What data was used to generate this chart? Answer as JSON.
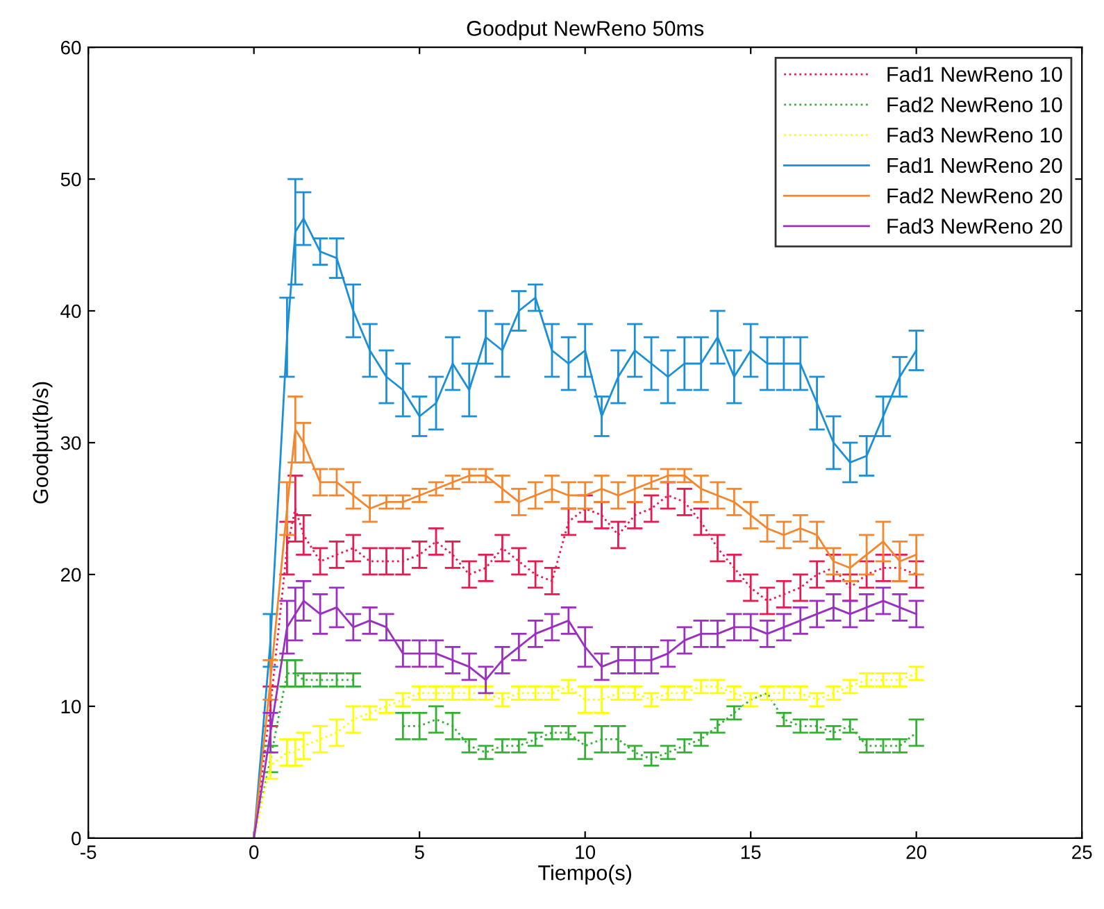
{
  "chart_data": {
    "type": "line",
    "title": "Goodput NewReno 50ms",
    "xlabel": "Tiempo(s)",
    "ylabel": "Goodput(b/s)",
    "x": [
      0,
      0.5,
      1,
      1.25,
      1.5,
      2,
      2.5,
      3,
      3.5,
      4,
      4.5,
      5,
      5.5,
      6,
      6.5,
      7,
      7.5,
      8,
      8.5,
      9,
      9.5,
      10,
      10.5,
      11,
      11.5,
      12,
      12.5,
      13,
      13.5,
      14,
      14.5,
      15,
      15.5,
      16,
      16.5,
      17,
      17.5,
      18,
      18.5,
      19,
      19.5,
      20
    ],
    "series": [
      {
        "name": "Fad1 NewReno 10",
        "color": "#e8194f",
        "line_style": "dotted",
        "values": [
          0,
          10,
          22,
          25,
          23,
          21,
          21.5,
          22,
          21,
          21,
          21,
          21.5,
          22.5,
          21.5,
          20,
          20.5,
          22,
          21,
          20,
          19.5,
          24,
          25,
          24.5,
          23,
          24.5,
          25,
          26,
          25.5,
          24,
          22,
          20.5,
          19,
          18,
          18.5,
          19,
          20,
          20.5,
          19,
          20,
          20.5,
          20.5,
          20
        ],
        "errors": [
          null,
          1.5,
          2,
          2.5,
          1.5,
          1,
          1,
          1,
          1,
          1,
          1,
          1,
          1,
          1,
          1,
          1,
          1,
          1,
          1,
          1,
          1,
          1,
          1,
          1,
          1,
          1,
          1,
          1,
          1,
          1,
          1,
          1,
          1,
          1,
          1,
          1,
          1,
          1,
          1,
          1,
          1,
          1
        ]
      },
      {
        "name": "Fad2 NewReno 10",
        "color": "#33b033",
        "line_style": "dotted",
        "values": [
          0,
          6,
          12.5,
          12.5,
          12,
          12,
          12,
          12,
          null,
          null,
          8.5,
          8.5,
          9,
          8.5,
          7,
          6.5,
          7,
          7,
          7.5,
          8,
          8,
          7,
          7.5,
          7.5,
          6.5,
          6,
          6.5,
          7,
          7.5,
          8.5,
          9.5,
          10.5,
          11,
          9,
          8.5,
          8.5,
          8,
          8.5,
          7,
          7,
          7,
          8
        ],
        "errors": [
          null,
          1,
          1,
          1,
          0.5,
          0.5,
          0.5,
          0.5,
          null,
          null,
          1,
          1,
          1,
          1,
          0.5,
          0.5,
          0.5,
          0.5,
          0.5,
          0.5,
          0.5,
          1,
          1,
          1,
          0.5,
          0.5,
          0.5,
          0.5,
          0.5,
          0.5,
          0.5,
          null,
          null,
          0.5,
          0.5,
          0.5,
          0.5,
          0.5,
          0.5,
          0.5,
          0.5,
          1
        ]
      },
      {
        "name": "Fad3 NewReno 10",
        "color": "#ffff00",
        "line_style": "dotted",
        "values": [
          0,
          5.5,
          6.5,
          6.5,
          7,
          7.5,
          8,
          9,
          9.5,
          10,
          10.5,
          11,
          11,
          11,
          11,
          11,
          10.5,
          11,
          11,
          11,
          11.5,
          10.5,
          10.5,
          11,
          11,
          10.5,
          11,
          11,
          11.5,
          11.5,
          11,
          10.5,
          11,
          11,
          11,
          10.5,
          11,
          11.5,
          12,
          12,
          12,
          12.5
        ],
        "errors": [
          null,
          1,
          1,
          1,
          1,
          1,
          1,
          1,
          0.5,
          0.5,
          0.5,
          0.5,
          0.5,
          0.5,
          0.5,
          0.5,
          0.5,
          0.5,
          0.5,
          0.5,
          0.5,
          1,
          1,
          0.5,
          0.5,
          0.5,
          0.5,
          0.5,
          0.5,
          0.5,
          0.5,
          0.5,
          0.5,
          0.5,
          0.5,
          0.5,
          0.5,
          0.5,
          0.5,
          0.5,
          0.5,
          0.5
        ]
      },
      {
        "name": "Fad1 NewReno 20",
        "color": "#1a8fd6",
        "line_style": "solid",
        "values": [
          0,
          15,
          38,
          46,
          47,
          44.5,
          44,
          40,
          37,
          35,
          34,
          32,
          33,
          36,
          34,
          38,
          37,
          40,
          41,
          37,
          36,
          37,
          32,
          35,
          37,
          36,
          35,
          36,
          36,
          38,
          35,
          37,
          36,
          36,
          36,
          33,
          30,
          28.5,
          29,
          32,
          35,
          37
        ],
        "errors": [
          null,
          2,
          3,
          4,
          2,
          1,
          1.5,
          2,
          2,
          2,
          2,
          1.5,
          2,
          2,
          2,
          2,
          2,
          1.5,
          1,
          2,
          2,
          2,
          1.5,
          2,
          2,
          2,
          2,
          2,
          2,
          2,
          2,
          2,
          2,
          2,
          2,
          2,
          2,
          1.5,
          1.5,
          1.5,
          1.5,
          1.5
        ]
      },
      {
        "name": "Fad2 NewReno 20",
        "color": "#f5862e",
        "line_style": "solid",
        "values": [
          0,
          12,
          25,
          31,
          30,
          27,
          27,
          26,
          25,
          25.5,
          25.5,
          26,
          26.5,
          27,
          27.5,
          27.5,
          26.5,
          25.5,
          26,
          26.5,
          26,
          26,
          26.5,
          26,
          26.5,
          27,
          27.5,
          27.5,
          26.5,
          26,
          25.5,
          24.5,
          23.5,
          23,
          23.5,
          23,
          21,
          20.5,
          21.5,
          22.5,
          21,
          21.5
        ],
        "errors": [
          null,
          1.5,
          2,
          2.5,
          1.5,
          1,
          1,
          1,
          1,
          0.5,
          0.5,
          0.5,
          0.5,
          0.5,
          0.5,
          0.5,
          1,
          1,
          1,
          1,
          1,
          1,
          1,
          1,
          1,
          0.5,
          0.5,
          0.5,
          1,
          1,
          1,
          1,
          1,
          1,
          1,
          1,
          1,
          1,
          1.5,
          1.5,
          1.5,
          1.5
        ]
      },
      {
        "name": "Fad3 NewReno 20",
        "color": "#9a2fc0",
        "line_style": "solid",
        "values": [
          0,
          8,
          16,
          17,
          18,
          17,
          17.5,
          16,
          16.5,
          16,
          14,
          14,
          14,
          13.5,
          13,
          12,
          13.5,
          14.5,
          15.5,
          16,
          16.5,
          14.5,
          13,
          13.5,
          13.5,
          13.5,
          14,
          15,
          15.5,
          15.5,
          16,
          16,
          15.5,
          16,
          16.5,
          17,
          17.5,
          17,
          17.5,
          18,
          17.5,
          17
        ],
        "errors": [
          null,
          1.5,
          2,
          2,
          1.5,
          1.5,
          1.5,
          1,
          1,
          1,
          1,
          1,
          1,
          1,
          1,
          1,
          1,
          1,
          1,
          1,
          1,
          1.5,
          1,
          1,
          1,
          1,
          1,
          1,
          1,
          1,
          1,
          1,
          1,
          1,
          1,
          1,
          1,
          1,
          1,
          1,
          1,
          1
        ]
      }
    ],
    "xlim": [
      -5,
      25
    ],
    "ylim": [
      0,
      60
    ],
    "xticks": [
      -5,
      0,
      5,
      10,
      15,
      20,
      25
    ],
    "yticks": [
      0,
      10,
      20,
      30,
      40,
      50,
      60
    ],
    "grid": false,
    "legend": "top right"
  }
}
